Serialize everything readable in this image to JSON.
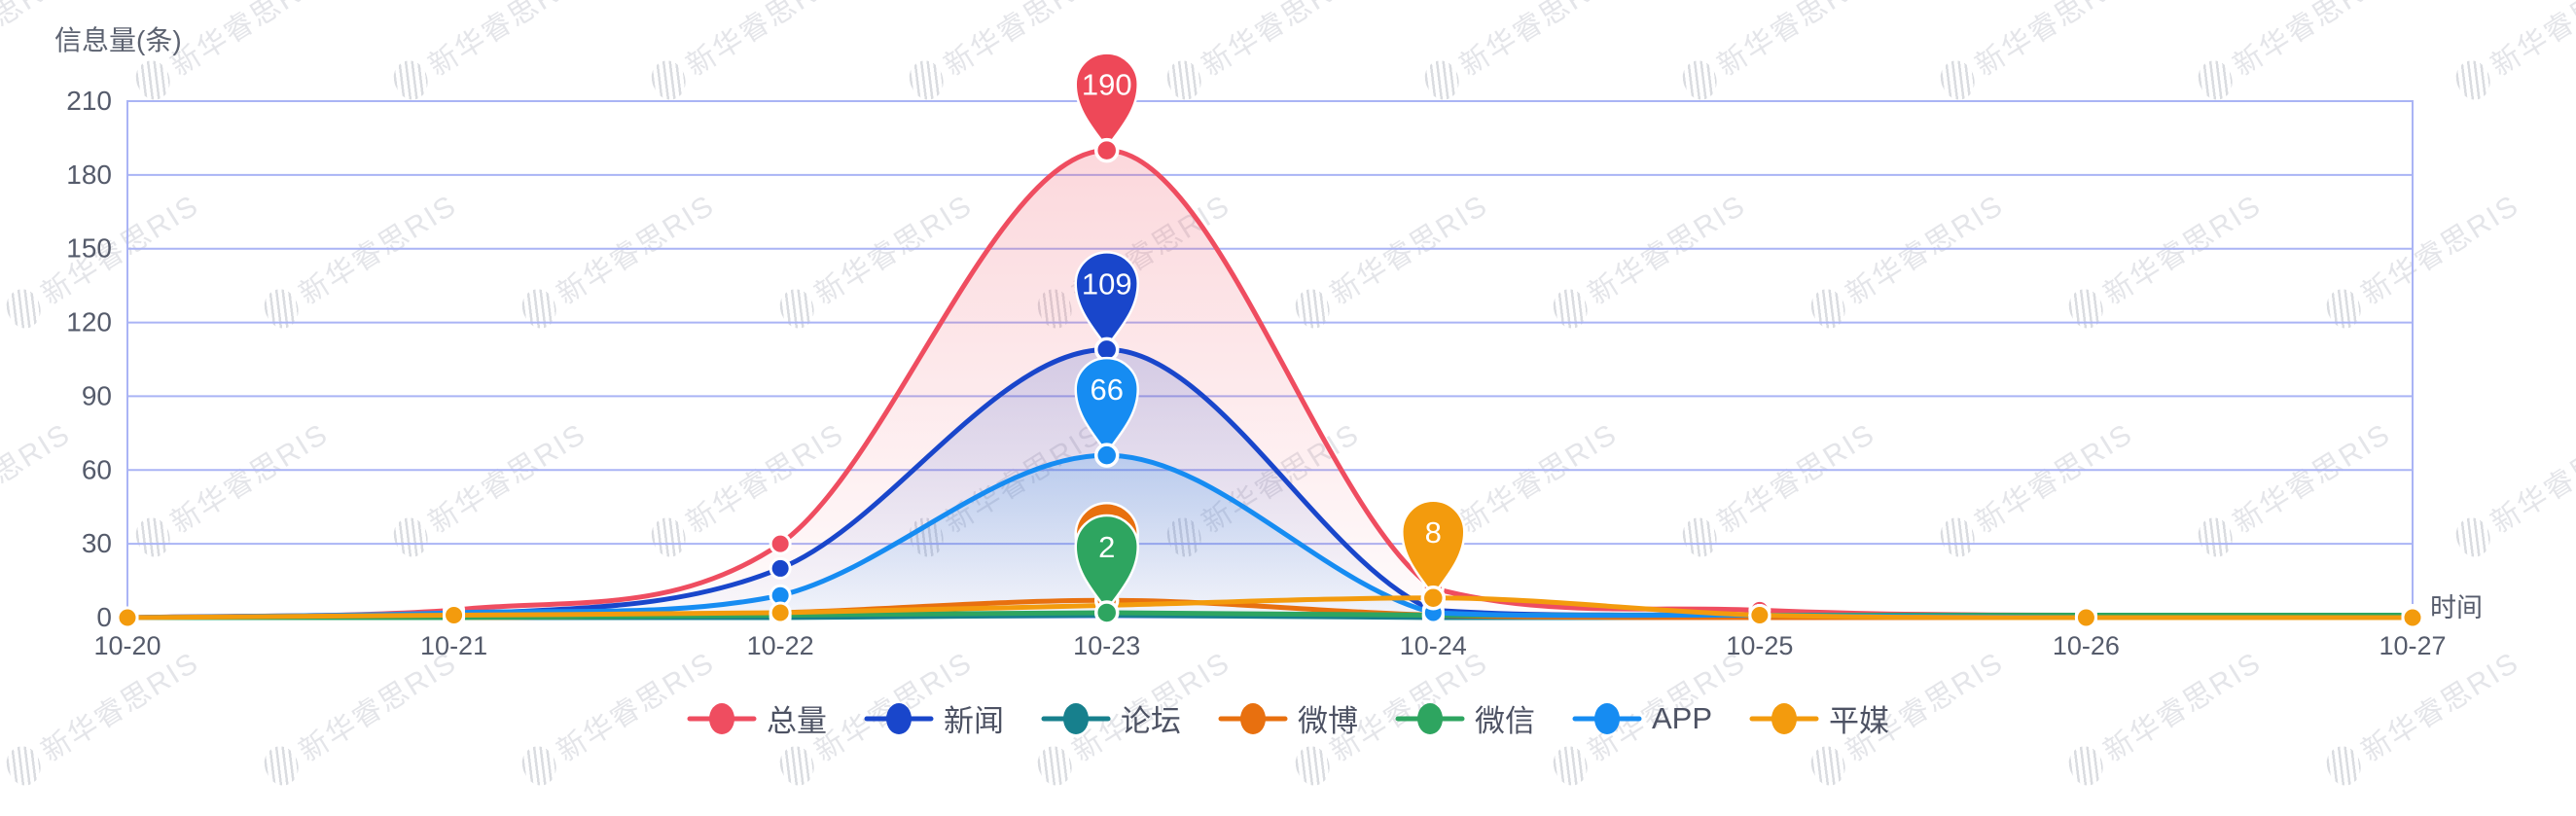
{
  "axis": {
    "y_title": "信息量(条)",
    "x_title": "时间"
  },
  "watermark": {
    "text": "新华睿思RIS"
  },
  "legend": {
    "items": [
      {
        "key": "total",
        "label": "总量",
        "color": "#EF4D60"
      },
      {
        "key": "news",
        "label": "新闻",
        "color": "#1946CB"
      },
      {
        "key": "forum",
        "label": "论坛",
        "color": "#17808D"
      },
      {
        "key": "weibo",
        "label": "微博",
        "color": "#E8700F"
      },
      {
        "key": "wechat",
        "label": "微信",
        "color": "#2EA560"
      },
      {
        "key": "app",
        "label": "APP",
        "color": "#168CF2"
      },
      {
        "key": "print",
        "label": "平媒",
        "color": "#F39B0D"
      }
    ]
  },
  "chart_data": {
    "type": "line",
    "smooth": true,
    "grid": true,
    "legend_position": "bottom",
    "title": "",
    "xlabel": "时间",
    "ylabel": "信息量(条)",
    "categories": [
      "10-20",
      "10-21",
      "10-22",
      "10-23",
      "10-24",
      "10-25",
      "10-26",
      "10-27"
    ],
    "y_ticks": [
      0,
      30,
      60,
      90,
      120,
      150,
      180,
      210
    ],
    "ylim": [
      0,
      210
    ],
    "series": [
      {
        "key": "total",
        "name": "总量",
        "color": "#EF4D60",
        "area": true,
        "area_alpha": [
          0.22,
          0.02
        ],
        "values": [
          0,
          3,
          30,
          190,
          12,
          3,
          1,
          1
        ]
      },
      {
        "key": "news",
        "name": "新闻",
        "color": "#1946CB",
        "area": true,
        "area_alpha": [
          0.18,
          0.02
        ],
        "values": [
          0,
          1,
          20,
          109,
          3,
          1,
          0,
          0
        ]
      },
      {
        "key": "forum",
        "name": "论坛",
        "color": "#17808D",
        "area": false,
        "values": [
          0,
          0,
          0,
          1,
          0,
          0,
          0,
          0
        ]
      },
      {
        "key": "weibo",
        "name": "微博",
        "color": "#E8700F",
        "area": false,
        "values": [
          0,
          0,
          2,
          7,
          1,
          0,
          0,
          0
        ]
      },
      {
        "key": "wechat",
        "name": "微信",
        "color": "#2EA560",
        "area": false,
        "values": [
          0,
          0,
          1,
          2,
          1,
          1,
          1,
          1
        ]
      },
      {
        "key": "app",
        "name": "APP",
        "color": "#168CF2",
        "area": true,
        "area_alpha": [
          0.2,
          0.03
        ],
        "values": [
          0,
          2,
          9,
          66,
          2,
          1,
          0,
          0
        ]
      },
      {
        "key": "print",
        "name": "平媒",
        "color": "#F39B0D",
        "area": false,
        "values": [
          0,
          1,
          2,
          5,
          8,
          1,
          0,
          0
        ]
      }
    ],
    "markers": [
      {
        "series": "weibo",
        "category": "10-23",
        "value": 7,
        "label": "",
        "color": "#E8700F"
      },
      {
        "series": "wechat",
        "category": "10-23",
        "value": 2,
        "label": "2",
        "color": "#2EA560"
      },
      {
        "series": "total",
        "category": "10-23",
        "value": 190,
        "label": "190",
        "color": "#EE4858"
      },
      {
        "series": "news",
        "category": "10-23",
        "value": 109,
        "label": "109",
        "color": "#1946CB"
      },
      {
        "series": "app",
        "category": "10-23",
        "value": 66,
        "label": "66",
        "color": "#168CF2"
      },
      {
        "series": "print",
        "category": "10-24",
        "value": 8,
        "label": "8",
        "color": "#F39B0D"
      }
    ]
  }
}
